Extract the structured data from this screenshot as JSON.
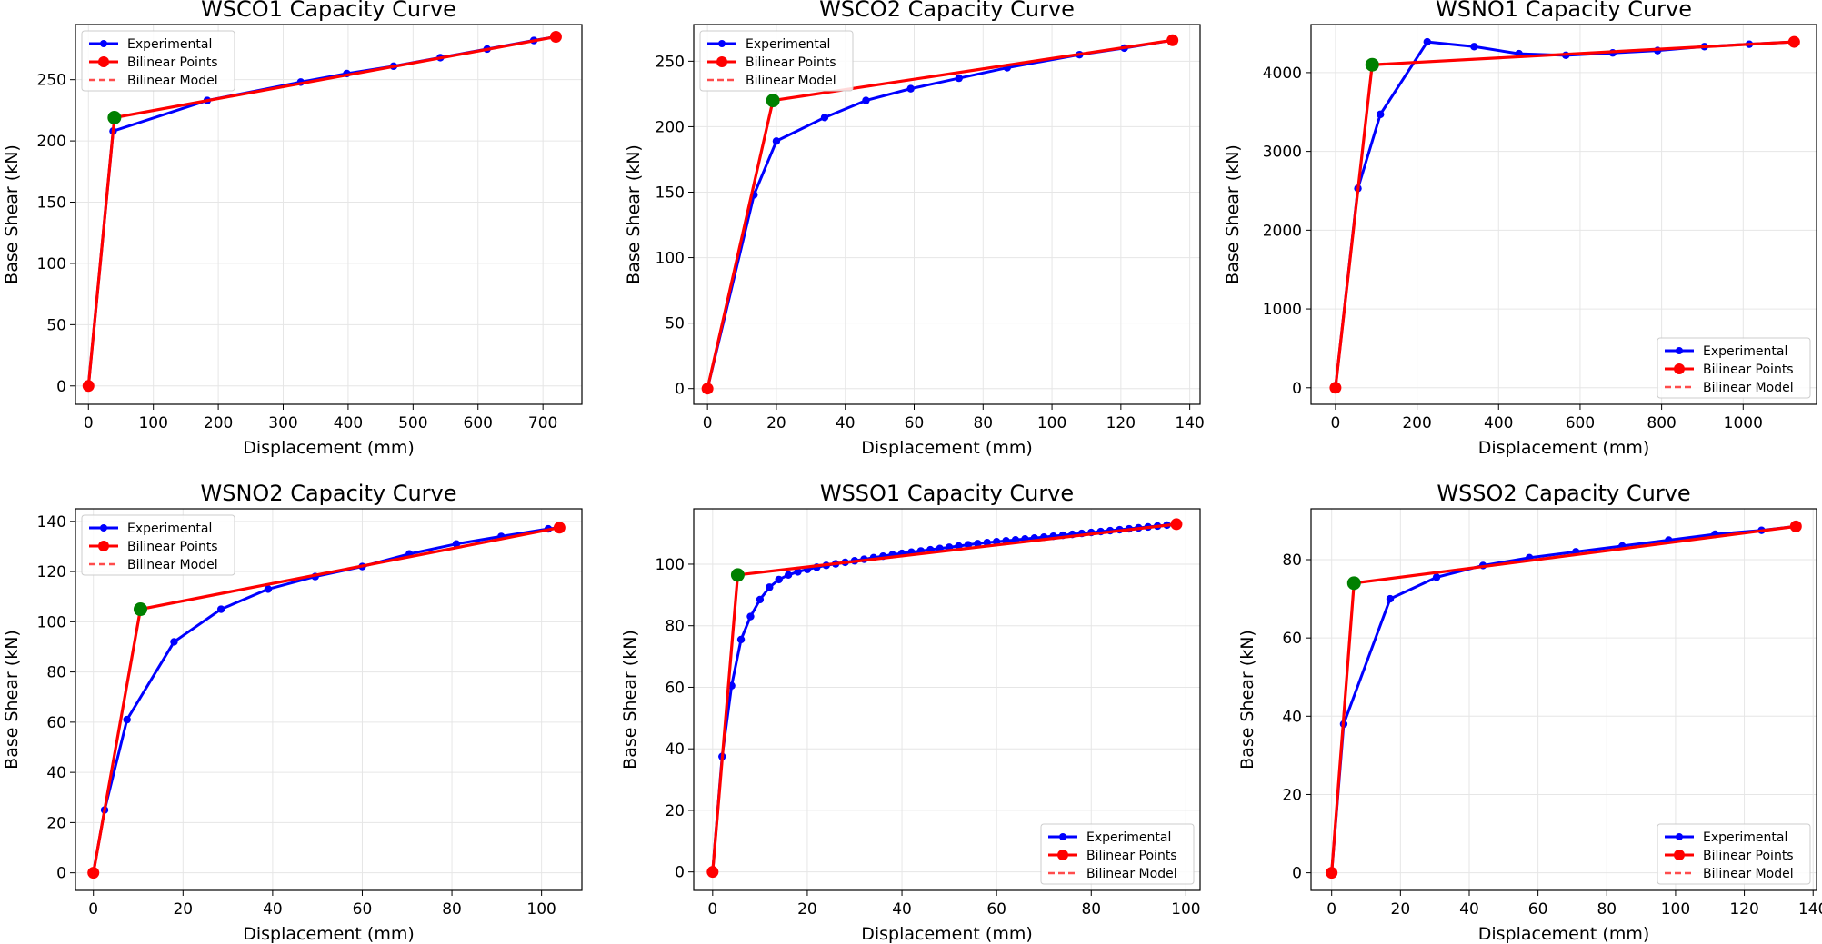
{
  "figure": {
    "background": "#ffffff"
  },
  "colors": {
    "experimental": "#0000ff",
    "bilinear": "#ff0000",
    "yield": "#008000",
    "grid": "#e6e6e6",
    "frame": "#000000"
  },
  "chart_data": [
    {
      "id": "wsco1",
      "type": "line",
      "title": "WSCO1 Capacity Curve",
      "xlabel": "Displacement (mm)",
      "ylabel": "Base Shear (kN)",
      "xlim": [
        -20,
        760
      ],
      "ylim": [
        -15,
        295
      ],
      "xticks": [
        0,
        100,
        200,
        300,
        400,
        500,
        600,
        700
      ],
      "yticks": [
        0,
        50,
        100,
        150,
        200,
        250
      ],
      "grid": true,
      "legend": {
        "position": "upper left",
        "entries": [
          "Experimental",
          "Bilinear Points",
          "Bilinear Model"
        ]
      },
      "series": [
        {
          "name": "Experimental",
          "x": [
            0,
            38,
            183,
            327,
            398,
            470,
            542,
            614,
            686,
            720
          ],
          "y": [
            0,
            208,
            233,
            248,
            255,
            261,
            268,
            275,
            282,
            285
          ]
        },
        {
          "name": "Bilinear Points",
          "x": [
            0,
            40,
            720
          ],
          "y": [
            0,
            219,
            285
          ]
        },
        {
          "name": "Bilinear Model",
          "x": [
            0,
            40,
            720
          ],
          "y": [
            0,
            219,
            285
          ]
        }
      ],
      "yield_point": {
        "x": 40,
        "y": 219
      }
    },
    {
      "id": "wsco2",
      "type": "line",
      "title": "WSCO2 Capacity Curve",
      "xlabel": "Displacement (mm)",
      "ylabel": "Base Shear (kN)",
      "xlim": [
        -4,
        143
      ],
      "ylim": [
        -12,
        278
      ],
      "xticks": [
        0,
        20,
        40,
        60,
        80,
        100,
        120,
        140
      ],
      "yticks": [
        0,
        50,
        100,
        150,
        200,
        250
      ],
      "grid": true,
      "legend": {
        "position": "upper left",
        "entries": [
          "Experimental",
          "Bilinear Points",
          "Bilinear Model"
        ]
      },
      "series": [
        {
          "name": "Experimental",
          "x": [
            0,
            13.5,
            20,
            34,
            46,
            59,
            73,
            87,
            108,
            121,
            135
          ],
          "y": [
            0,
            148,
            189,
            207,
            220,
            229,
            237,
            245,
            255,
            260,
            266
          ]
        },
        {
          "name": "Bilinear Points",
          "x": [
            0,
            19,
            135
          ],
          "y": [
            0,
            220,
            266
          ]
        },
        {
          "name": "Bilinear Model",
          "x": [
            0,
            19,
            135
          ],
          "y": [
            0,
            220,
            266
          ]
        }
      ],
      "yield_point": {
        "x": 19,
        "y": 220
      }
    },
    {
      "id": "wsno1",
      "type": "line",
      "title": "WSNO1 Capacity Curve",
      "xlabel": "Displacement (mm)",
      "ylabel": "Base Shear (kN)",
      "xlim": [
        -60,
        1180
      ],
      "ylim": [
        -210,
        4610
      ],
      "xticks": [
        0,
        200,
        400,
        600,
        800,
        1000
      ],
      "yticks": [
        0,
        1000,
        2000,
        3000,
        4000
      ],
      "grid": true,
      "legend": {
        "position": "lower right",
        "entries": [
          "Experimental",
          "Bilinear Points",
          "Bilinear Model"
        ]
      },
      "series": [
        {
          "name": "Experimental",
          "x": [
            0,
            55,
            110,
            225,
            340,
            450,
            565,
            680,
            790,
            905,
            1015,
            1125
          ],
          "y": [
            0,
            2530,
            3470,
            4390,
            4330,
            4240,
            4220,
            4250,
            4280,
            4330,
            4360,
            4390
          ]
        },
        {
          "name": "Bilinear Points",
          "x": [
            0,
            90,
            1125
          ],
          "y": [
            0,
            4100,
            4390
          ]
        },
        {
          "name": "Bilinear Model",
          "x": [
            0,
            90,
            1125
          ],
          "y": [
            0,
            4100,
            4390
          ]
        }
      ],
      "yield_point": {
        "x": 90,
        "y": 4100
      }
    },
    {
      "id": "wsno2",
      "type": "line",
      "title": "WSNO2 Capacity Curve",
      "xlabel": "Displacement (mm)",
      "ylabel": "Base Shear (kN)",
      "xlim": [
        -4,
        109
      ],
      "ylim": [
        -7,
        145
      ],
      "xticks": [
        0,
        20,
        40,
        60,
        80,
        100
      ],
      "yticks": [
        0,
        20,
        40,
        60,
        80,
        100,
        120,
        140
      ],
      "grid": true,
      "legend": {
        "position": "upper left",
        "entries": [
          "Experimental",
          "Bilinear Points",
          "Bilinear Model"
        ]
      },
      "series": [
        {
          "name": "Experimental",
          "x": [
            0,
            2.5,
            7.5,
            18,
            28.5,
            39,
            49.5,
            60,
            70.5,
            81,
            91,
            101.5,
            104
          ],
          "y": [
            0,
            25,
            61,
            92,
            105,
            113,
            118,
            122,
            127,
            131,
            134,
            137,
            137.5
          ]
        },
        {
          "name": "Bilinear Points",
          "x": [
            0,
            10.5,
            104
          ],
          "y": [
            0,
            105,
            137.5
          ]
        },
        {
          "name": "Bilinear Model",
          "x": [
            0,
            10.5,
            104
          ],
          "y": [
            0,
            105,
            137.5
          ]
        }
      ],
      "yield_point": {
        "x": 10.5,
        "y": 105
      }
    },
    {
      "id": "wsso1",
      "type": "line",
      "title": "WSSO1 Capacity Curve",
      "xlabel": "Displacement (mm)",
      "ylabel": "Base Shear (kN)",
      "xlim": [
        -4,
        103
      ],
      "ylim": [
        -6,
        118
      ],
      "xticks": [
        0,
        20,
        40,
        60,
        80,
        100
      ],
      "yticks": [
        0,
        20,
        40,
        60,
        80,
        100
      ],
      "grid": true,
      "legend": {
        "position": "lower right",
        "entries": [
          "Experimental",
          "Bilinear Points",
          "Bilinear Model"
        ]
      },
      "series": [
        {
          "name": "Experimental",
          "x": [
            0,
            2,
            4,
            6,
            8,
            10,
            12,
            14,
            16,
            18,
            20,
            22,
            24,
            26,
            28,
            30,
            32,
            34,
            36,
            38,
            40,
            42,
            44,
            46,
            48,
            50,
            52,
            54,
            56,
            58,
            60,
            62,
            64,
            66,
            68,
            70,
            72,
            74,
            76,
            78,
            80,
            82,
            84,
            86,
            88,
            90,
            92,
            94,
            96,
            98
          ],
          "y": [
            0,
            37.5,
            60.5,
            75.5,
            83,
            88.5,
            92.5,
            95,
            96.5,
            97.5,
            98.3,
            99,
            99.6,
            100.1,
            100.6,
            101.1,
            101.6,
            102.1,
            102.6,
            103.1,
            103.5,
            103.9,
            104.3,
            104.7,
            105.1,
            105.5,
            105.9,
            106.3,
            106.7,
            107.0,
            107.3,
            107.6,
            107.9,
            108.2,
            108.5,
            108.8,
            109.1,
            109.4,
            109.7,
            110.0,
            110.3,
            110.6,
            110.9,
            111.2,
            111.5,
            111.8,
            112.1,
            112.4,
            112.7,
            113.0
          ]
        },
        {
          "name": "Bilinear Points",
          "x": [
            0,
            5.3,
            98
          ],
          "y": [
            0,
            96.5,
            113.0
          ]
        },
        {
          "name": "Bilinear Model",
          "x": [
            0,
            5.3,
            98
          ],
          "y": [
            0,
            96.5,
            113.0
          ]
        }
      ],
      "yield_point": {
        "x": 5.3,
        "y": 96.5
      }
    },
    {
      "id": "wsso2",
      "type": "line",
      "title": "WSSO2 Capacity Curve",
      "xlabel": "Displacement (mm)",
      "ylabel": "Base Shear (kN)",
      "xlim": [
        -6,
        141
      ],
      "ylim": [
        -4.5,
        93
      ],
      "xticks": [
        0,
        20,
        40,
        60,
        80,
        100,
        120,
        140
      ],
      "yticks": [
        0,
        20,
        40,
        60,
        80
      ],
      "grid": true,
      "legend": {
        "position": "lower right",
        "entries": [
          "Experimental",
          "Bilinear Points",
          "Bilinear Model"
        ]
      },
      "series": [
        {
          "name": "Experimental",
          "x": [
            0,
            3.5,
            17,
            30.5,
            44,
            57.5,
            71,
            84.5,
            98,
            111.5,
            125,
            135
          ],
          "y": [
            0,
            38,
            70,
            75.5,
            78.5,
            80.5,
            82,
            83.5,
            85,
            86.5,
            87.5,
            88.5
          ]
        },
        {
          "name": "Bilinear Points",
          "x": [
            0,
            6.5,
            135
          ],
          "y": [
            0,
            74,
            88.5
          ]
        },
        {
          "name": "Bilinear Model",
          "x": [
            0,
            6.5,
            135
          ],
          "y": [
            0,
            74,
            88.5
          ]
        }
      ],
      "yield_point": {
        "x": 6.5,
        "y": 74
      }
    }
  ]
}
